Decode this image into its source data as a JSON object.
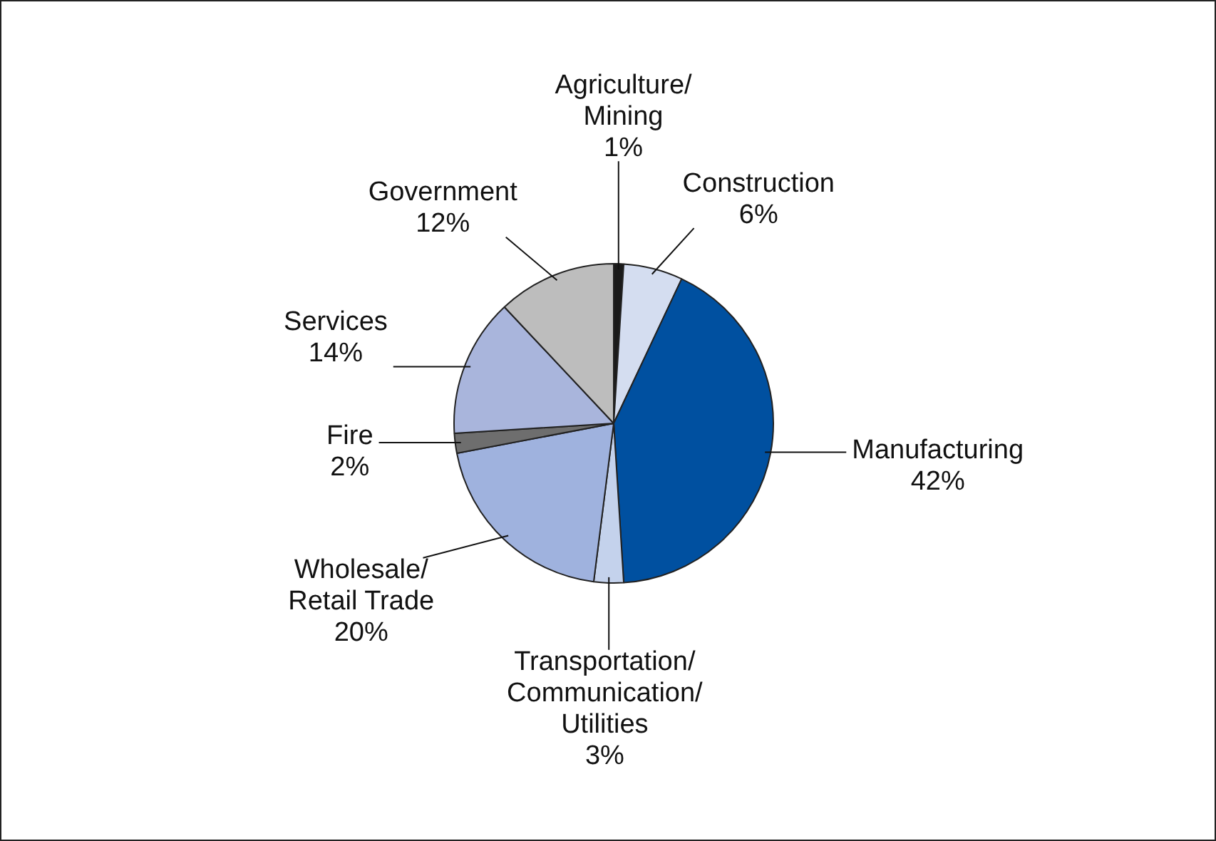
{
  "chart_data": {
    "type": "pie",
    "categories": [
      "Agriculture/Mining",
      "Construction",
      "Manufacturing",
      "Transportation/Communication/Utilities",
      "Wholesale/Retail Trade",
      "Fire",
      "Services",
      "Government"
    ],
    "values": [
      1,
      6,
      42,
      3,
      20,
      2,
      14,
      12
    ],
    "value_labels": [
      "1%",
      "6%",
      "42%",
      "3%",
      "20%",
      "2%",
      "14%",
      "12%"
    ],
    "colors": [
      "#1a1a1a",
      "#d4ddf0",
      "#0050a0",
      "#c4d2ec",
      "#9fb2de",
      "#6e6e6e",
      "#a9b5dc",
      "#bdbdbd"
    ],
    "legend": false
  }
}
